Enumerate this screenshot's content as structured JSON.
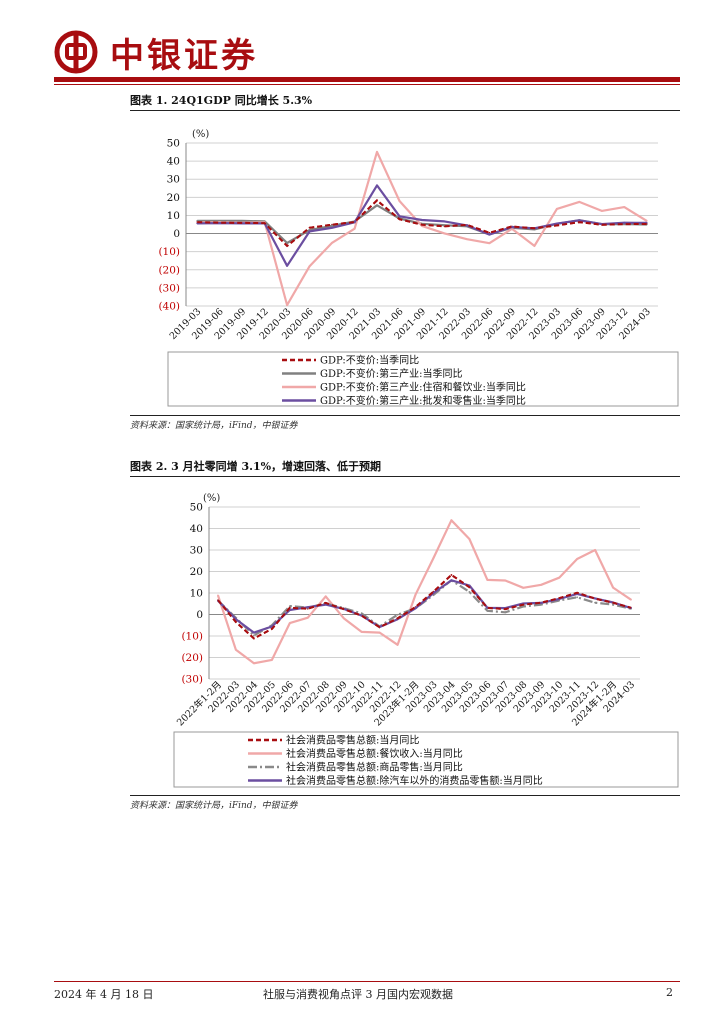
{
  "header": {
    "brand": "中银证券"
  },
  "figure1": {
    "title": "图表 1. 24Q1GDP 同比增长 5.3%",
    "source": "资料来源：国家统计局，iFind，中银证券",
    "unit_label": "(%)",
    "chart_data": {
      "type": "line",
      "title": "图表 1. 24Q1GDP 同比增长 5.3%",
      "ylabel": "(%)",
      "ylim": [
        -40,
        50
      ],
      "yticks": [
        "50",
        "40",
        "30",
        "20",
        "10",
        "0",
        "(10)",
        "(20)",
        "(30)",
        "(40)"
      ],
      "categories": [
        "2019-03",
        "2019-06",
        "2019-09",
        "2019-12",
        "2020-03",
        "2020-06",
        "2020-09",
        "2020-12",
        "2021-03",
        "2021-06",
        "2021-09",
        "2021-12",
        "2022-03",
        "2022-06",
        "2022-09",
        "2022-12",
        "2023-03",
        "2023-06",
        "2023-09",
        "2023-12",
        "2024-03"
      ],
      "x_tick_labels": [
        "2019-03",
        "2019-06",
        "2019-09",
        "2019-12",
        "2020-03",
        "2020-06",
        "2020-09",
        "2020-12",
        "2021-03",
        "2021-06",
        "2021-09",
        "2021-12",
        "2022-03",
        "2022-06",
        "2022-09",
        "2022-12",
        "2023-03",
        "2023-06",
        "2023-09",
        "2023-12",
        "2024-03"
      ],
      "legend_position": "bottom",
      "series": [
        {
          "name": "GDP:不变价:当季同比",
          "color": "#a80d10",
          "dash": "dashed",
          "values": [
            6.3,
            6.0,
            5.9,
            5.8,
            -6.8,
            3.2,
            4.9,
            6.4,
            18.3,
            7.9,
            4.9,
            4.0,
            4.8,
            0.4,
            3.9,
            2.9,
            4.5,
            6.3,
            4.9,
            5.2,
            5.3
          ]
        },
        {
          "name": "GDP:不变价:第三产业:当季同比",
          "color": "#808080",
          "dash": "solid",
          "values": [
            7.0,
            7.0,
            7.0,
            6.7,
            -5.2,
            1.9,
            4.3,
            6.7,
            15.6,
            8.3,
            5.4,
            4.6,
            4.0,
            -0.4,
            3.2,
            2.3,
            5.4,
            7.4,
            5.2,
            5.3,
            5.0
          ]
        },
        {
          "name": "GDP:不变价:第三产业:住宿和餐饮业:当季同比",
          "color": "#f0a8a8",
          "dash": "solid",
          "values": [
            6.1,
            6.2,
            6.0,
            6.2,
            -39.5,
            -18.0,
            -5.1,
            2.7,
            45.1,
            18.0,
            4.2,
            0.1,
            -3.1,
            -5.3,
            2.6,
            -6.8,
            13.6,
            17.5,
            12.5,
            14.6,
            7.0
          ]
        },
        {
          "name": "GDP:不变价:第三产业:批发和零售业:当季同比",
          "color": "#6b4ea0",
          "dash": "solid",
          "values": [
            5.6,
            5.8,
            5.6,
            5.6,
            -17.8,
            1.2,
            3.2,
            6.2,
            26.6,
            9.5,
            7.5,
            6.7,
            4.5,
            -0.6,
            3.6,
            2.9,
            5.5,
            7.3,
            5.2,
            6.0,
            5.9
          ]
        }
      ]
    }
  },
  "figure2": {
    "title": "图表 2. 3 月社零同增 3.1%，增速回落、低于预期",
    "source": "资料来源：国家统计局，iFind，中银证券",
    "unit_label": "(%)",
    "chart_data": {
      "type": "line",
      "title": "图表 2. 3 月社零同增 3.1%，增速回落、低于预期",
      "ylabel": "(%)",
      "ylim": [
        -30,
        50
      ],
      "yticks": [
        "50",
        "40",
        "30",
        "20",
        "10",
        "0",
        "(10)",
        "(20)",
        "(30)"
      ],
      "categories": [
        "2022年1-2月",
        "2022-03",
        "2022-04",
        "2022-05",
        "2022-06",
        "2022-07",
        "2022-08",
        "2022-09",
        "2022-10",
        "2022-11",
        "2022-12",
        "2023年1-2月",
        "2023-03",
        "2023-04",
        "2023-05",
        "2023-06",
        "2023-07",
        "2023-08",
        "2023-09",
        "2023-10",
        "2023-11",
        "2023-12",
        "2024年1-2月",
        "2024-03"
      ],
      "x_tick_labels": [
        "2022年1-2月",
        "2022-03",
        "2022-04",
        "2022-05",
        "2022-06",
        "2022-07",
        "2022-08",
        "2022-09",
        "2022-10",
        "2022-11",
        "2022-12",
        "2023年1-2月",
        "2023-03",
        "2023-04",
        "2023-05",
        "2023-06",
        "2023-07",
        "2023-08",
        "2023-09",
        "2023-10",
        "2023-11",
        "2023-12",
        "2024年1-2月",
        "2024-03"
      ],
      "legend_position": "bottom",
      "series": [
        {
          "name": "社会消费品零售总额:当月同比",
          "color": "#a80d10",
          "dash": "dashed",
          "values": [
            6.7,
            -3.5,
            -11.1,
            -6.7,
            3.1,
            2.7,
            5.4,
            2.5,
            -0.5,
            -5.9,
            -1.8,
            3.5,
            10.6,
            18.4,
            12.7,
            3.1,
            2.5,
            4.6,
            5.5,
            7.6,
            10.1,
            7.4,
            5.5,
            3.1
          ]
        },
        {
          "name": "社会消费品零售总额:餐饮收入:当月同比",
          "color": "#f0a8a8",
          "dash": "solid",
          "values": [
            8.9,
            -16.4,
            -22.7,
            -21.1,
            -4.0,
            -1.5,
            8.4,
            -1.7,
            -8.1,
            -8.4,
            -14.1,
            9.2,
            26.3,
            43.8,
            35.1,
            16.1,
            15.8,
            12.4,
            13.8,
            17.1,
            25.8,
            30.0,
            12.5,
            6.9
          ]
        },
        {
          "name": "社会消费品零售总额:商品零售:当月同比",
          "color": "#8a8a8a",
          "dash": "dashdot",
          "values": [
            6.5,
            -1.6,
            -9.7,
            -5.0,
            3.9,
            3.2,
            5.1,
            3.0,
            0.5,
            -5.6,
            -0.1,
            2.9,
            9.1,
            15.9,
            10.5,
            1.7,
            1.0,
            3.7,
            4.6,
            6.5,
            8.0,
            5.5,
            4.6,
            2.7
          ]
        },
        {
          "name": "社会消费品零售总额:除汽车以外的消费品零售额:当月同比",
          "color": "#6b4ea0",
          "dash": "solid",
          "values": [
            6.4,
            -2.2,
            -8.4,
            -5.6,
            2.1,
            3.4,
            4.6,
            2.6,
            -0.5,
            -5.8,
            -2.2,
            2.9,
            10.0,
            15.9,
            13.5,
            3.1,
            3.0,
            5.1,
            5.4,
            7.2,
            9.6,
            7.5,
            5.6,
            3.0
          ]
        }
      ]
    }
  },
  "footer": {
    "date": "2024 年 4 月 18 日",
    "doc_title": "社服与消费视角点评 3 月国内宏观数据",
    "page": "2"
  }
}
